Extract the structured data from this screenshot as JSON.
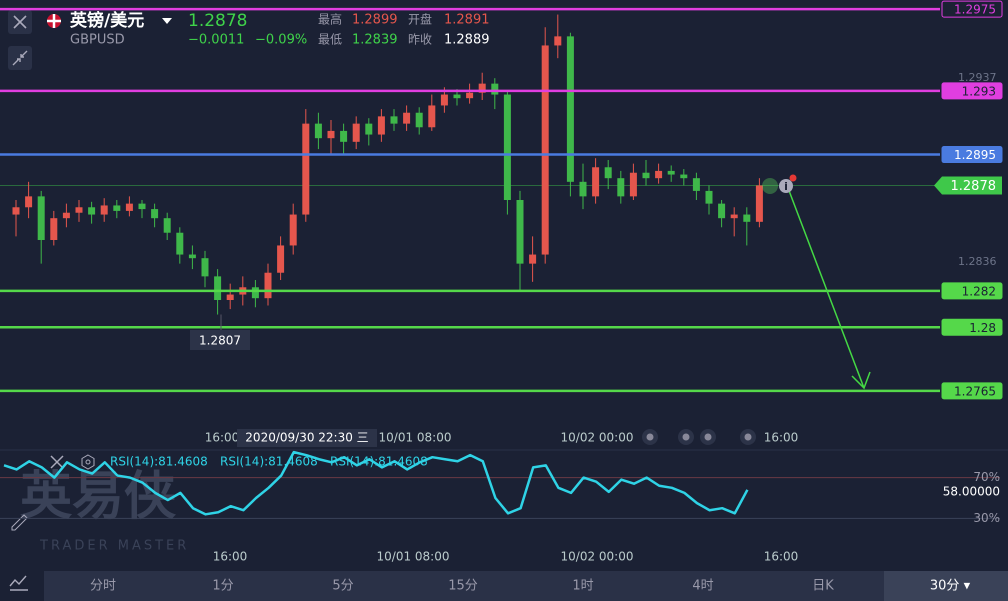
{
  "header": {
    "symbol": "英镑/美元",
    "code": "GBPUSD",
    "price": "1.2878",
    "change": "−0.0011",
    "change_pct": "−0.09%",
    "high_label": "最高",
    "high": "1.2899",
    "open_label": "开盘",
    "open": "1.2891",
    "low_label": "最低",
    "low": "1.2839",
    "prev_label": "昨收",
    "prev": "1.2889"
  },
  "chart_data": {
    "type": "candlestick",
    "open": [
      1.2862,
      1.2866,
      1.2872,
      1.2848,
      1.286,
      1.2863,
      1.2866,
      1.2862,
      1.2867,
      1.2864,
      1.2868,
      1.2865,
      1.286,
      1.2852,
      1.284,
      1.2838,
      1.2828,
      1.2815,
      1.2818,
      1.2822,
      1.2816,
      1.283,
      1.2845,
      1.2862,
      1.2912,
      1.2904,
      1.2908,
      1.2902,
      1.2912,
      1.2906,
      1.2916,
      1.2912,
      1.2918,
      1.291,
      1.2922,
      1.2928,
      1.2926,
      1.2929,
      1.2934,
      1.2928,
      1.287,
      1.2835,
      1.284,
      1.2955,
      1.296,
      1.288,
      1.2872,
      1.2888,
      1.2882,
      1.2872,
      1.2885,
      1.2882,
      1.2886,
      1.2884,
      1.2882,
      1.2875,
      1.2868,
      1.286,
      1.2862,
      1.2858
    ],
    "high": [
      1.287,
      1.288,
      1.2875,
      1.2864,
      1.2868,
      1.287,
      1.2869,
      1.2871,
      1.287,
      1.2872,
      1.287,
      1.2868,
      1.2863,
      1.2855,
      1.2845,
      1.2842,
      1.2832,
      1.2824,
      1.2828,
      1.2826,
      1.2835,
      1.285,
      1.2868,
      1.292,
      1.2918,
      1.2914,
      1.2912,
      1.2916,
      1.2915,
      1.292,
      1.292,
      1.2922,
      1.2921,
      1.2928,
      1.2932,
      1.2931,
      1.2934,
      1.294,
      1.2937,
      1.293,
      1.2875,
      1.285,
      1.2965,
      1.2972,
      1.2962,
      1.289,
      1.2893,
      1.2892,
      1.2886,
      1.289,
      1.2892,
      1.289,
      1.2889,
      1.2887,
      1.2885,
      1.2878,
      1.287,
      1.2866,
      1.2866,
      1.2882
    ],
    "low": [
      1.285,
      1.286,
      1.2835,
      1.2845,
      1.2855,
      1.2858,
      1.2857,
      1.2858,
      1.286,
      1.2861,
      1.286,
      1.2855,
      1.2848,
      1.2835,
      1.2832,
      1.2822,
      1.2807,
      1.281,
      1.2812,
      1.2811,
      1.2812,
      1.2826,
      1.284,
      1.2858,
      1.2898,
      1.2895,
      1.2895,
      1.2898,
      1.29,
      1.2902,
      1.2908,
      1.2908,
      1.2906,
      1.2908,
      1.2918,
      1.2922,
      1.2923,
      1.2925,
      1.292,
      1.2862,
      1.282,
      1.2825,
      1.2835,
      1.2948,
      1.2872,
      1.2865,
      1.2868,
      1.2876,
      1.2868,
      1.287,
      1.2878,
      1.2879,
      1.288,
      1.2878,
      1.287,
      1.2862,
      1.2855,
      1.285,
      1.2845,
      1.2855
    ],
    "close": [
      1.2866,
      1.2872,
      1.2848,
      1.286,
      1.2863,
      1.2866,
      1.2862,
      1.2867,
      1.2864,
      1.2868,
      1.2865,
      1.286,
      1.2852,
      1.284,
      1.2838,
      1.2828,
      1.2815,
      1.2818,
      1.2822,
      1.2816,
      1.283,
      1.2845,
      1.2862,
      1.2912,
      1.2904,
      1.2908,
      1.2902,
      1.2912,
      1.2906,
      1.2916,
      1.2912,
      1.2918,
      1.291,
      1.2922,
      1.2928,
      1.2926,
      1.2929,
      1.2934,
      1.2928,
      1.287,
      1.2835,
      1.284,
      1.2955,
      1.296,
      1.288,
      1.2872,
      1.2888,
      1.2882,
      1.2872,
      1.2885,
      1.2882,
      1.2886,
      1.2884,
      1.2882,
      1.2875,
      1.2868,
      1.286,
      1.2862,
      1.2858,
      1.2878
    ],
    "up_color": "#e5564d",
    "down_color": "#3fb84a",
    "ylim": [
      1.2749,
      1.298
    ],
    "yticks": [
      1.2937,
      1.2836
    ],
    "levels": [
      1.2975,
      1.293,
      1.2895,
      1.282,
      1.28,
      1.2765
    ],
    "level_colors": [
      "#e03ee0",
      "#e03ee0",
      "#4a7be0",
      "#55d84a",
      "#55d84a",
      "#55d84a"
    ],
    "current": 1.2878,
    "current_color": "#3fc84a",
    "annotation": "1.2807",
    "x_labels": [
      "16:00",
      "10/01 08:00",
      "10/02 00:00",
      "16:00"
    ],
    "crosshair_time": "2020/09/30 22:30 三"
  },
  "rsi": {
    "type": "line",
    "color": "#2fd3e6",
    "legend": [
      "RSI(14):81.4608",
      "RSI(14):81.4608",
      "RSI(14):81.4608"
    ],
    "values": [
      82,
      78,
      86,
      80,
      70,
      85,
      78,
      74,
      85,
      72,
      70,
      65,
      55,
      48,
      55,
      40,
      34,
      36,
      42,
      38,
      50,
      60,
      72,
      95,
      92,
      88,
      85,
      90,
      82,
      88,
      80,
      86,
      78,
      85,
      90,
      88,
      86,
      92,
      86,
      50,
      35,
      40,
      80,
      82,
      60,
      55,
      70,
      66,
      56,
      68,
      64,
      70,
      62,
      60,
      55,
      45,
      38,
      40,
      35,
      58
    ],
    "ylim": [
      0,
      100
    ],
    "yticks": [
      {
        "value": 70,
        "label": "70%"
      },
      {
        "value": 30,
        "label": "30%"
      }
    ],
    "value_label": "58.00000",
    "x_labels": [
      "16:00",
      "10/01 08:00",
      "10/02 00:00",
      "16:00"
    ]
  },
  "watermark": {
    "title": "英易侠",
    "subtitle": "TRADER MASTER"
  },
  "tabs": [
    "分时",
    "1分",
    "5分",
    "15分",
    "1时",
    "4时",
    "日K",
    "30分 ▾"
  ],
  "active_tab": 7
}
